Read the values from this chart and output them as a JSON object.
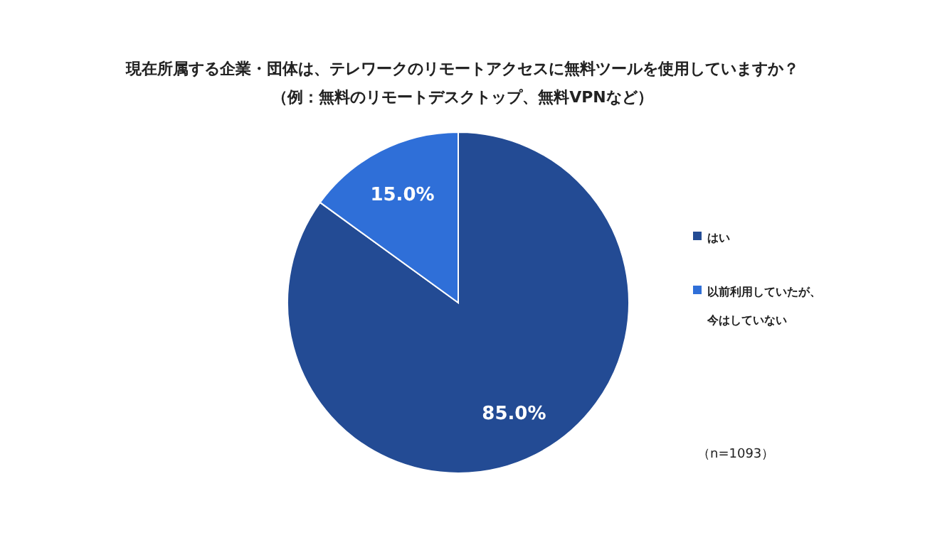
{
  "chart_data": {
    "type": "pie",
    "title": "現在所属する企業・団体は、テレワークのリモートアクセスに無料ツールを使用していますか？",
    "subtitle": "（例：無料のリモートデスクトップ、無料VPNなど）",
    "categories": [
      "はい",
      "以前利用していたが、今はしていない"
    ],
    "values": [
      85.0,
      15.0
    ],
    "colors": [
      "#234b94",
      "#2f6fd8"
    ],
    "value_labels": [
      "85.0%",
      "15.0%"
    ],
    "legend": "right",
    "annotations": [
      "（n=1093）"
    ]
  }
}
